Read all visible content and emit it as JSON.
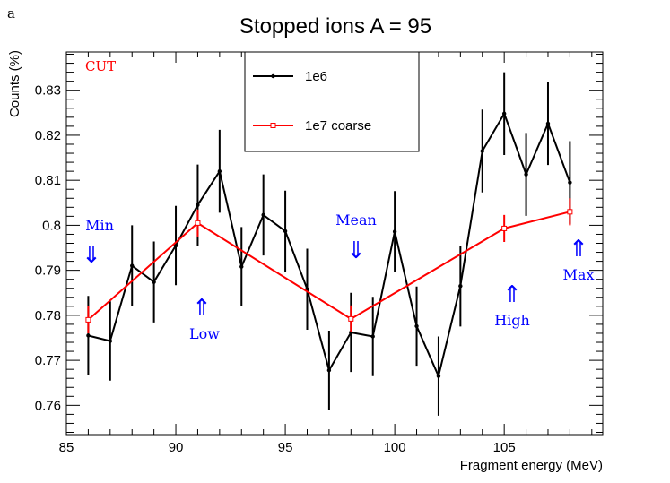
{
  "panel_label": "a",
  "chart_data": {
    "type": "line",
    "title": "Stopped ions  A = 95",
    "xlabel": "Fragment energy (MeV)",
    "ylabel": "Counts (%)",
    "xlim": [
      85,
      109.5
    ],
    "ylim": [
      0.7535,
      0.8385
    ],
    "xticks": [
      85,
      90,
      95,
      100,
      105
    ],
    "yticks": [
      0.76,
      0.77,
      0.78,
      0.79,
      0.8,
      0.81,
      0.82,
      0.83
    ],
    "ytick_labels": [
      "0.76",
      "0.77",
      "0.78",
      "0.79",
      "0.8",
      "0.81",
      "0.82",
      "0.83"
    ],
    "grid": false,
    "legend_position": "top-center",
    "series": [
      {
        "name": "1e6",
        "color": "#000000",
        "marker": "dot",
        "x": [
          86,
          87,
          88,
          89,
          90,
          91,
          92,
          93,
          94,
          95,
          96,
          97,
          98,
          99,
          100,
          101,
          102,
          103,
          104,
          105,
          106,
          107,
          108
        ],
        "y": [
          0.7755,
          0.7743,
          0.791,
          0.7874,
          0.7955,
          0.8045,
          0.812,
          0.7908,
          0.8023,
          0.7987,
          0.7858,
          0.7678,
          0.7762,
          0.7753,
          0.7986,
          0.7776,
          0.7665,
          0.7865,
          0.8165,
          0.8248,
          0.8113,
          0.8226,
          0.8095
        ],
        "err": [
          0.0088,
          0.0088,
          0.009,
          0.009,
          0.0088,
          0.009,
          0.0092,
          0.0088,
          0.009,
          0.009,
          0.009,
          0.0088,
          0.0088,
          0.0088,
          0.009,
          0.0088,
          0.0088,
          0.009,
          0.0092,
          0.0092,
          0.0092,
          0.0092,
          0.0092
        ]
      },
      {
        "name": "1e7 coarse",
        "color": "#ff0000",
        "marker": "open-square",
        "x": [
          86,
          91,
          98,
          105,
          108
        ],
        "y": [
          0.779,
          0.8005,
          0.7792,
          0.7993,
          0.803
        ],
        "err": [
          0.003,
          0.003,
          0.003,
          0.003,
          0.003
        ]
      }
    ],
    "annotations": {
      "cut": {
        "label": "CUT",
        "color": "#ff0000"
      },
      "markers": [
        {
          "label": "Min",
          "arrow": "⇓",
          "color": "#0000ff"
        },
        {
          "label": "Low",
          "arrow": "⇑",
          "color": "#0000ff"
        },
        {
          "label": "Mean",
          "arrow": "⇓",
          "color": "#0000ff"
        },
        {
          "label": "High",
          "arrow": "⇑",
          "color": "#0000ff"
        },
        {
          "label": "Max",
          "arrow": "⇑",
          "color": "#0000ff"
        }
      ]
    }
  }
}
